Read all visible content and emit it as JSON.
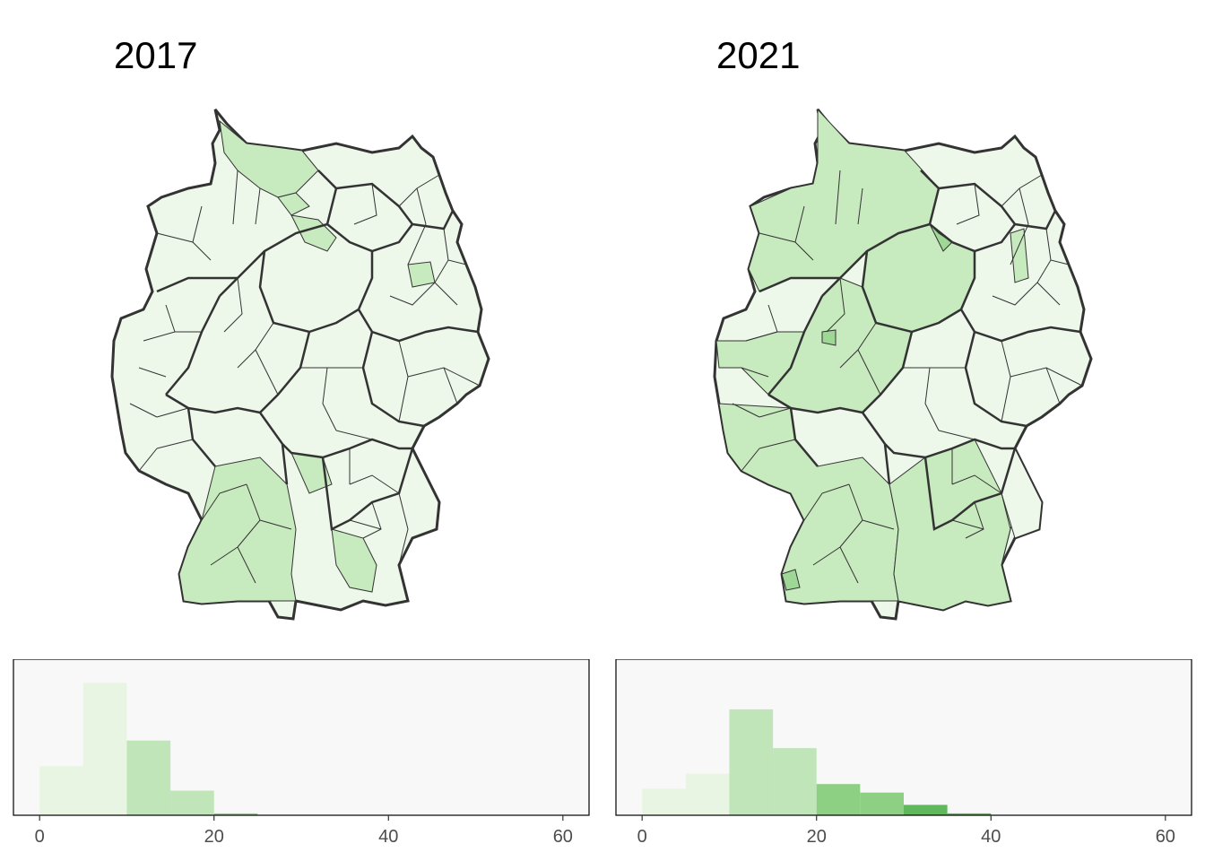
{
  "panels": [
    {
      "title": "2017",
      "histogram": {
        "type": "bar",
        "bins": [
          [
            0,
            5
          ],
          [
            5,
            10
          ],
          [
            10,
            15
          ],
          [
            15,
            20
          ],
          [
            20,
            25
          ]
        ],
        "counts": [
          52,
          140,
          79,
          26,
          2
        ],
        "colors": [
          "#e8f5e3",
          "#e8f5e3",
          "#bfe5b8",
          "#bfe5b8",
          "#8ed083"
        ],
        "xlim": [
          -3,
          63
        ],
        "xticks": [
          "0",
          "20",
          "40",
          "60"
        ],
        "xtick_values": [
          0,
          20,
          40,
          60
        ],
        "ymax": 165
      }
    },
    {
      "title": "2021",
      "histogram": {
        "type": "bar",
        "bins": [
          [
            0,
            5
          ],
          [
            5,
            10
          ],
          [
            10,
            15
          ],
          [
            15,
            20
          ],
          [
            20,
            25
          ],
          [
            25,
            30
          ],
          [
            30,
            35
          ],
          [
            35,
            40
          ]
        ],
        "counts": [
          28,
          44,
          112,
          71,
          33,
          24,
          11,
          2
        ],
        "colors": [
          "#e8f5e3",
          "#e8f5e3",
          "#bfe5b8",
          "#bfe5b8",
          "#8ed083",
          "#8ed083",
          "#5fb85a",
          "#5fb85a"
        ],
        "xlim": [
          -3,
          63
        ],
        "xticks": [
          "0",
          "20",
          "40",
          "60"
        ],
        "xtick_values": [
          0,
          20,
          40,
          60
        ],
        "ymax": 165
      }
    }
  ],
  "colors": {
    "outline": "#333333",
    "panel_bg": "#f8f8f8",
    "light": "#edf7ea",
    "mid": "#c8eabf",
    "dark": "#9fd896"
  }
}
